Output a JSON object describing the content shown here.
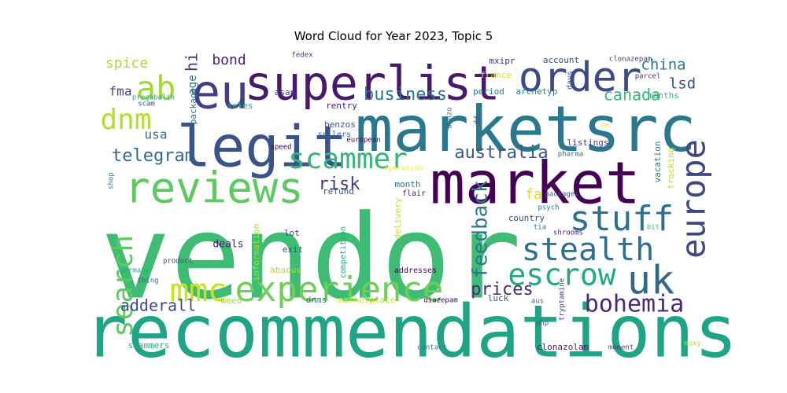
{
  "chart_data": {
    "type": "wordcloud",
    "title": "Word Cloud for Year 2023, Topic 5",
    "words": [
      {
        "text": "vendor",
        "weight": 1.0,
        "color": "#3fbc73",
        "rotate": false
      },
      {
        "text": "recommendations",
        "weight": 0.62,
        "color": "#20a486",
        "rotate": false
      },
      {
        "text": "marketsrc",
        "weight": 0.55,
        "color": "#2a788e",
        "rotate": false
      },
      {
        "text": "market",
        "weight": 0.5,
        "color": "#440154",
        "rotate": false
      },
      {
        "text": "legit",
        "weight": 0.48,
        "color": "#3b528b",
        "rotate": false
      },
      {
        "text": "superlist",
        "weight": 0.4,
        "color": "#481a6c",
        "rotate": false
      },
      {
        "text": "eu",
        "weight": 0.4,
        "color": "#433e85",
        "rotate": false
      },
      {
        "text": "reviews",
        "weight": 0.37,
        "color": "#5ec962",
        "rotate": false
      },
      {
        "text": "order",
        "weight": 0.36,
        "color": "#3e4989",
        "rotate": false
      },
      {
        "text": "uk",
        "weight": 0.33,
        "color": "#31688e",
        "rotate": false
      },
      {
        "text": "experience",
        "weight": 0.31,
        "color": "#6ece58",
        "rotate": false
      },
      {
        "text": "stuff",
        "weight": 0.28,
        "color": "#2c728e",
        "rotate": false
      },
      {
        "text": "europe",
        "weight": 0.28,
        "color": "#404688",
        "rotate": true
      },
      {
        "text": "ab",
        "weight": 0.28,
        "color": "#a0da39",
        "rotate": false
      },
      {
        "text": "mmc",
        "weight": 0.27,
        "color": "#cae11f",
        "rotate": false
      },
      {
        "text": "stealth",
        "weight": 0.27,
        "color": "#2d708e",
        "rotate": false
      },
      {
        "text": "escrow",
        "weight": 0.26,
        "color": "#22a884",
        "rotate": false
      },
      {
        "text": "search",
        "weight": 0.24,
        "color": "#5ec962",
        "rotate": true
      },
      {
        "text": "scammer",
        "weight": 0.24,
        "color": "#35b779",
        "rotate": false
      },
      {
        "text": "dnm",
        "weight": 0.24,
        "color": "#b5de2b",
        "rotate": false
      },
      {
        "text": "bohemia",
        "weight": 0.21,
        "color": "#482878",
        "rotate": false
      },
      {
        "text": "feedback",
        "weight": 0.18,
        "color": "#2a788e",
        "rotate": true
      },
      {
        "text": "telegram",
        "weight": 0.16,
        "color": "#31688e",
        "rotate": false
      },
      {
        "text": "australia",
        "weight": 0.16,
        "color": "#38588c",
        "rotate": false
      },
      {
        "text": "prices",
        "weight": 0.16,
        "color": "#472d7b",
        "rotate": false
      },
      {
        "text": "adderall",
        "weight": 0.15,
        "color": "#3e4989",
        "rotate": false
      },
      {
        "text": "business",
        "weight": 0.15,
        "color": "#2a788e",
        "rotate": false
      },
      {
        "text": "risk",
        "weight": 0.15,
        "color": "#443983",
        "rotate": false
      },
      {
        "text": "canada",
        "weight": 0.14,
        "color": "#35b779",
        "rotate": false
      },
      {
        "text": "china",
        "weight": 0.13,
        "color": "#287c8e",
        "rotate": false
      },
      {
        "text": "lsd",
        "weight": 0.13,
        "color": "#3b528b",
        "rotate": false
      },
      {
        "text": "spice",
        "weight": 0.12,
        "color": "#addc30",
        "rotate": false
      },
      {
        "text": "bond",
        "weight": 0.12,
        "color": "#481f70",
        "rotate": false
      },
      {
        "text": "hi",
        "weight": 0.13,
        "color": "#46337e",
        "rotate": true
      },
      {
        "text": "fma",
        "weight": 0.11,
        "color": "#414487",
        "rotate": false
      },
      {
        "text": "usa",
        "weight": 0.11,
        "color": "#2f6c8e",
        "rotate": false
      },
      {
        "text": "fa",
        "weight": 0.12,
        "color": "#d5e21a",
        "rotate": false
      },
      {
        "text": "age",
        "weight": 0.1,
        "color": "#2c728e",
        "rotate": true
      },
      {
        "text": "mxipr",
        "weight": 0.08,
        "color": "#46307e",
        "rotate": false
      },
      {
        "text": "account",
        "weight": 0.08,
        "color": "#3b528b",
        "rotate": false
      },
      {
        "text": "clonazepam",
        "weight": 0.06,
        "color": "#46337e",
        "rotate": false
      },
      {
        "text": "fedex",
        "weight": 0.06,
        "color": "#46327e",
        "rotate": false
      },
      {
        "text": "france",
        "weight": 0.08,
        "color": "#d8e219",
        "rotate": false
      },
      {
        "text": "period",
        "weight": 0.08,
        "color": "#2a788e",
        "rotate": false
      },
      {
        "text": "archetyp",
        "weight": 0.08,
        "color": "#287d8e",
        "rotate": false
      },
      {
        "text": "days",
        "weight": 0.07,
        "color": "#3b528b",
        "rotate": true
      },
      {
        "text": "parcel",
        "weight": 0.06,
        "color": "#472c7a",
        "rotate": false
      },
      {
        "text": "months",
        "weight": 0.07,
        "color": "#35b779",
        "rotate": false
      },
      {
        "text": "pregabalin",
        "weight": 0.06,
        "color": "#22a884",
        "rotate": false
      },
      {
        "text": "scam",
        "weight": 0.06,
        "color": "#3e4989",
        "rotate": false
      },
      {
        "text": "package",
        "weight": 0.07,
        "color": "#2f6c8e",
        "rotate": true
      },
      {
        "text": "sales",
        "weight": 0.07,
        "color": "#25ab82",
        "rotate": false
      },
      {
        "text": "asap",
        "weight": 0.07,
        "color": "#433e85",
        "rotate": false
      },
      {
        "text": "rentry",
        "weight": 0.07,
        "color": "#481c6e",
        "rotate": false
      },
      {
        "text": "benzo",
        "weight": 0.06,
        "color": "#2c728e",
        "rotate": true
      },
      {
        "text": "dd",
        "weight": 0.06,
        "color": "#3b528b",
        "rotate": true
      },
      {
        "text": "cmc",
        "weight": 0.05,
        "color": "#fde725",
        "rotate": false
      },
      {
        "text": "benzos",
        "weight": 0.07,
        "color": "#3b528b",
        "rotate": false
      },
      {
        "text": "sellers",
        "weight": 0.06,
        "color": "#31688e",
        "rotate": false
      },
      {
        "text": "european",
        "weight": 0.06,
        "color": "#440154",
        "rotate": false
      },
      {
        "text": "speed",
        "weight": 0.06,
        "color": "#440154",
        "rotate": false
      },
      {
        "text": "listings",
        "weight": 0.07,
        "color": "#443983",
        "rotate": false
      },
      {
        "text": "pharma",
        "weight": 0.06,
        "color": "#2c728e",
        "rotate": false
      },
      {
        "text": "vacation",
        "weight": 0.07,
        "color": "#287c8e",
        "rotate": true
      },
      {
        "text": "tracking",
        "weight": 0.07,
        "color": "#b5de2b",
        "rotate": true
      },
      {
        "text": "operation",
        "weight": 0.06,
        "color": "#fde725",
        "rotate": false
      },
      {
        "text": "shop",
        "weight": 0.06,
        "color": "#2a788e",
        "rotate": true
      },
      {
        "text": "refund",
        "weight": 0.07,
        "color": "#3b528b",
        "rotate": false
      },
      {
        "text": "month",
        "weight": 0.07,
        "color": "#2c728e",
        "rotate": false
      },
      {
        "text": "flair",
        "weight": 0.06,
        "color": "#481c6e",
        "rotate": false
      },
      {
        "text": "packages",
        "weight": 0.06,
        "color": "#3b528b",
        "rotate": false
      },
      {
        "text": "delivery",
        "weight": 0.07,
        "color": "#cae11f",
        "rotate": true
      },
      {
        "text": "psych",
        "weight": 0.06,
        "color": "#2f6c8e",
        "rotate": false
      },
      {
        "text": "country",
        "weight": 0.08,
        "color": "#3e4989",
        "rotate": false
      },
      {
        "text": "tia",
        "weight": 0.06,
        "color": "#2c728e",
        "rotate": false
      },
      {
        "text": "bit",
        "weight": 0.06,
        "color": "#35b779",
        "rotate": false
      },
      {
        "text": "shrooms",
        "weight": 0.06,
        "color": "#481c6e",
        "rotate": false
      },
      {
        "text": "lot",
        "weight": 0.07,
        "color": "#433e85",
        "rotate": false
      },
      {
        "text": "deals",
        "weight": 0.08,
        "color": "#481c6e",
        "rotate": false
      },
      {
        "text": "information",
        "weight": 0.07,
        "color": "#addc30",
        "rotate": true
      },
      {
        "text": "exit",
        "weight": 0.07,
        "color": "#3b528b",
        "rotate": false
      },
      {
        "text": "competition",
        "weight": 0.06,
        "color": "#22a884",
        "rotate": true
      },
      {
        "text": "product",
        "weight": 0.06,
        "color": "#3e4989",
        "rotate": false
      },
      {
        "text": "germany",
        "weight": 0.06,
        "color": "#22a884",
        "rotate": false
      },
      {
        "text": "abacus",
        "weight": 0.07,
        "color": "#addc30",
        "rotate": false
      },
      {
        "text": "addresses",
        "weight": 0.06,
        "color": "#440154",
        "rotate": false
      },
      {
        "text": "thing",
        "weight": 0.06,
        "color": "#2f6c8e",
        "rotate": false
      },
      {
        "text": "weed",
        "weight": 0.07,
        "color": "#a0da39",
        "rotate": false
      },
      {
        "text": "dnms",
        "weight": 0.07,
        "color": "#2c728e",
        "rotate": false
      },
      {
        "text": "marketplace",
        "weight": 0.07,
        "color": "#cae11f",
        "rotate": false
      },
      {
        "text": "diazepam",
        "weight": 0.06,
        "color": "#440154",
        "rotate": false
      },
      {
        "text": "luck",
        "weight": 0.07,
        "color": "#3b528b",
        "rotate": false
      },
      {
        "text": "aus",
        "weight": 0.06,
        "color": "#2f6c8e",
        "rotate": false
      },
      {
        "text": "tryptamine",
        "weight": 0.06,
        "color": "#46307e",
        "rotate": true
      },
      {
        "text": "scammers",
        "weight": 0.07,
        "color": "#22a884",
        "rotate": false
      },
      {
        "text": "php",
        "weight": 0.06,
        "color": "#3b528b",
        "rotate": false
      },
      {
        "text": "contact",
        "weight": 0.06,
        "color": "#2a788e",
        "rotate": false
      },
      {
        "text": "clonazolam",
        "weight": 0.07,
        "color": "#481c6e",
        "rotate": false
      },
      {
        "text": "moment",
        "weight": 0.06,
        "color": "#433e85",
        "rotate": false
      },
      {
        "text": "moxy",
        "weight": 0.06,
        "color": "#addc30",
        "rotate": false
      }
    ]
  }
}
